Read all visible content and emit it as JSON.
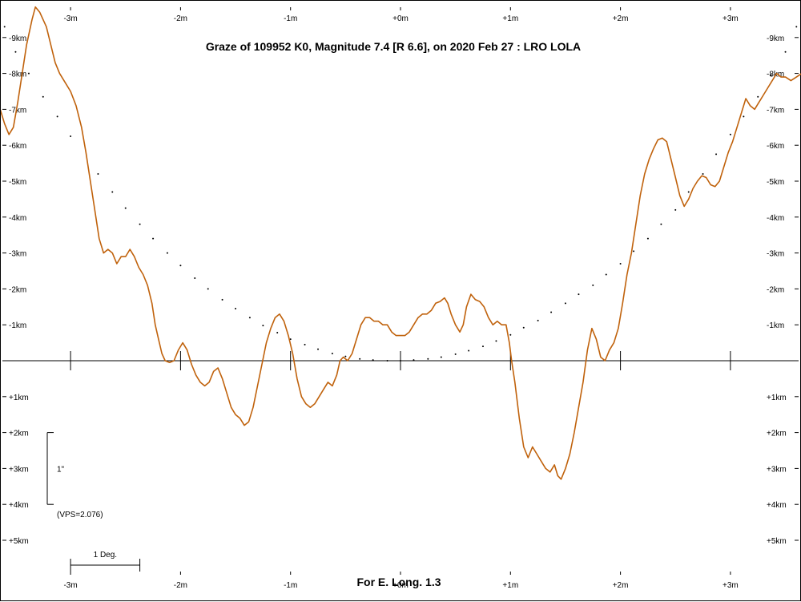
{
  "chart_data": {
    "type": "line",
    "title": "Graze of  109952 K0,  Magnitude 7.4 [R 6.6],  on 2020 Feb 27  :  LRO LOLA",
    "footer": "For E. Long. 1.3",
    "x_ticks": [
      "-3m",
      "-2m",
      "-1m",
      "+0m",
      "+1m",
      "+2m",
      "+3m"
    ],
    "y_ticks": [
      "-9km",
      "-8km",
      "-7km",
      "-6km",
      "-5km",
      "-4km",
      "-3km",
      "-2km",
      "-1km",
      "+1km",
      "+2km",
      "+3km",
      "+4km",
      "+5km"
    ],
    "xlim": [
      -3.65,
      3.65
    ],
    "ylim": [
      -10,
      6.5
    ],
    "scale_marker": {
      "label": "1\"",
      "y_from": 2,
      "y_to": 4
    },
    "vps_label": "(VPS=2.076)",
    "degree_scale": {
      "label": "1 Deg.",
      "x_from": -3,
      "x_to": -2.37
    },
    "colors": {
      "profile": "#c0620c",
      "dots": "#000000",
      "axis": "#000000"
    },
    "series": [
      {
        "style": "profile",
        "points": [
          [
            -3.65,
            -7.1
          ],
          [
            -3.6,
            -6.6
          ],
          [
            -3.56,
            -6.3
          ],
          [
            -3.52,
            -6.5
          ],
          [
            -3.48,
            -7.2
          ],
          [
            -3.44,
            -8.0
          ],
          [
            -3.4,
            -8.8
          ],
          [
            -3.35,
            -9.5
          ],
          [
            -3.32,
            -9.85
          ],
          [
            -3.28,
            -9.7
          ],
          [
            -3.22,
            -9.3
          ],
          [
            -3.18,
            -8.8
          ],
          [
            -3.14,
            -8.3
          ],
          [
            -3.1,
            -8.0
          ],
          [
            -3.06,
            -7.8
          ],
          [
            -3.0,
            -7.5
          ],
          [
            -2.95,
            -7.1
          ],
          [
            -2.9,
            -6.5
          ],
          [
            -2.86,
            -5.8
          ],
          [
            -2.82,
            -5.0
          ],
          [
            -2.78,
            -4.2
          ],
          [
            -2.74,
            -3.4
          ],
          [
            -2.7,
            -3.0
          ],
          [
            -2.66,
            -3.1
          ],
          [
            -2.62,
            -3.0
          ],
          [
            -2.58,
            -2.7
          ],
          [
            -2.54,
            -2.9
          ],
          [
            -2.5,
            -2.9
          ],
          [
            -2.46,
            -3.1
          ],
          [
            -2.42,
            -2.9
          ],
          [
            -2.38,
            -2.6
          ],
          [
            -2.34,
            -2.4
          ],
          [
            -2.3,
            -2.1
          ],
          [
            -2.26,
            -1.6
          ],
          [
            -2.23,
            -1.0
          ],
          [
            -2.2,
            -0.6
          ],
          [
            -2.17,
            -0.2
          ],
          [
            -2.14,
            0.0
          ],
          [
            -2.1,
            0.05
          ],
          [
            -2.06,
            0.0
          ],
          [
            -2.02,
            -0.3
          ],
          [
            -1.98,
            -0.5
          ],
          [
            -1.94,
            -0.3
          ],
          [
            -1.9,
            0.1
          ],
          [
            -1.86,
            0.4
          ],
          [
            -1.82,
            0.6
          ],
          [
            -1.78,
            0.7
          ],
          [
            -1.74,
            0.6
          ],
          [
            -1.7,
            0.3
          ],
          [
            -1.66,
            0.2
          ],
          [
            -1.62,
            0.5
          ],
          [
            -1.58,
            0.9
          ],
          [
            -1.54,
            1.3
          ],
          [
            -1.5,
            1.5
          ],
          [
            -1.46,
            1.6
          ],
          [
            -1.42,
            1.8
          ],
          [
            -1.38,
            1.7
          ],
          [
            -1.34,
            1.3
          ],
          [
            -1.3,
            0.7
          ],
          [
            -1.26,
            0.1
          ],
          [
            -1.22,
            -0.5
          ],
          [
            -1.18,
            -0.9
          ],
          [
            -1.14,
            -1.2
          ],
          [
            -1.1,
            -1.3
          ],
          [
            -1.06,
            -1.1
          ],
          [
            -1.02,
            -0.7
          ],
          [
            -0.98,
            -0.2
          ],
          [
            -0.94,
            0.5
          ],
          [
            -0.9,
            1.0
          ],
          [
            -0.86,
            1.2
          ],
          [
            -0.82,
            1.3
          ],
          [
            -0.78,
            1.2
          ],
          [
            -0.74,
            1.0
          ],
          [
            -0.7,
            0.8
          ],
          [
            -0.66,
            0.6
          ],
          [
            -0.62,
            0.7
          ],
          [
            -0.58,
            0.4
          ],
          [
            -0.55,
            0.0
          ],
          [
            -0.52,
            -0.1
          ],
          [
            -0.48,
            0.0
          ],
          [
            -0.44,
            -0.2
          ],
          [
            -0.4,
            -0.6
          ],
          [
            -0.36,
            -1.0
          ],
          [
            -0.32,
            -1.2
          ],
          [
            -0.28,
            -1.2
          ],
          [
            -0.24,
            -1.1
          ],
          [
            -0.2,
            -1.1
          ],
          [
            -0.16,
            -1.0
          ],
          [
            -0.12,
            -1.0
          ],
          [
            -0.08,
            -0.8
          ],
          [
            -0.04,
            -0.7
          ],
          [
            0.0,
            -0.7
          ],
          [
            0.04,
            -0.7
          ],
          [
            0.08,
            -0.8
          ],
          [
            0.12,
            -1.0
          ],
          [
            0.16,
            -1.2
          ],
          [
            0.2,
            -1.3
          ],
          [
            0.24,
            -1.3
          ],
          [
            0.28,
            -1.4
          ],
          [
            0.32,
            -1.6
          ],
          [
            0.36,
            -1.65
          ],
          [
            0.4,
            -1.75
          ],
          [
            0.43,
            -1.6
          ],
          [
            0.46,
            -1.3
          ],
          [
            0.5,
            -1.0
          ],
          [
            0.54,
            -0.8
          ],
          [
            0.57,
            -1.0
          ],
          [
            0.6,
            -1.5
          ],
          [
            0.64,
            -1.85
          ],
          [
            0.68,
            -1.7
          ],
          [
            0.72,
            -1.65
          ],
          [
            0.76,
            -1.5
          ],
          [
            0.8,
            -1.2
          ],
          [
            0.84,
            -1.0
          ],
          [
            0.88,
            -1.1
          ],
          [
            0.92,
            -1.0
          ],
          [
            0.96,
            -1.0
          ],
          [
            0.99,
            -0.5
          ],
          [
            1.01,
            0.0
          ],
          [
            1.04,
            0.6
          ],
          [
            1.08,
            1.6
          ],
          [
            1.12,
            2.4
          ],
          [
            1.16,
            2.7
          ],
          [
            1.2,
            2.4
          ],
          [
            1.24,
            2.6
          ],
          [
            1.28,
            2.8
          ],
          [
            1.32,
            3.0
          ],
          [
            1.36,
            3.1
          ],
          [
            1.4,
            2.9
          ],
          [
            1.43,
            3.2
          ],
          [
            1.46,
            3.3
          ],
          [
            1.5,
            3.0
          ],
          [
            1.54,
            2.6
          ],
          [
            1.58,
            2.0
          ],
          [
            1.62,
            1.3
          ],
          [
            1.66,
            0.6
          ],
          [
            1.7,
            -0.3
          ],
          [
            1.74,
            -0.9
          ],
          [
            1.78,
            -0.6
          ],
          [
            1.82,
            -0.1
          ],
          [
            1.86,
            0.0
          ],
          [
            1.9,
            -0.3
          ],
          [
            1.94,
            -0.5
          ],
          [
            1.98,
            -0.9
          ],
          [
            2.02,
            -1.6
          ],
          [
            2.06,
            -2.4
          ],
          [
            2.1,
            -3.0
          ],
          [
            2.14,
            -3.8
          ],
          [
            2.18,
            -4.6
          ],
          [
            2.22,
            -5.2
          ],
          [
            2.26,
            -5.6
          ],
          [
            2.3,
            -5.9
          ],
          [
            2.34,
            -6.15
          ],
          [
            2.38,
            -6.2
          ],
          [
            2.42,
            -6.1
          ],
          [
            2.46,
            -5.6
          ],
          [
            2.5,
            -5.1
          ],
          [
            2.54,
            -4.6
          ],
          [
            2.58,
            -4.3
          ],
          [
            2.62,
            -4.5
          ],
          [
            2.66,
            -4.8
          ],
          [
            2.7,
            -5.0
          ],
          [
            2.74,
            -5.15
          ],
          [
            2.78,
            -5.1
          ],
          [
            2.82,
            -4.9
          ],
          [
            2.86,
            -4.85
          ],
          [
            2.9,
            -5.0
          ],
          [
            2.94,
            -5.4
          ],
          [
            2.98,
            -5.8
          ],
          [
            3.02,
            -6.1
          ],
          [
            3.06,
            -6.5
          ],
          [
            3.1,
            -6.9
          ],
          [
            3.14,
            -7.3
          ],
          [
            3.18,
            -7.1
          ],
          [
            3.22,
            -7.0
          ],
          [
            3.26,
            -7.2
          ],
          [
            3.3,
            -7.4
          ],
          [
            3.34,
            -7.6
          ],
          [
            3.38,
            -7.8
          ],
          [
            3.42,
            -8.0
          ],
          [
            3.46,
            -7.9
          ],
          [
            3.5,
            -7.9
          ],
          [
            3.55,
            -7.8
          ],
          [
            3.6,
            -7.9
          ],
          [
            3.65,
            -8.0
          ]
        ]
      },
      {
        "style": "dots",
        "points": [
          [
            -3.6,
            -9.3
          ],
          [
            -3.5,
            -8.6
          ],
          [
            -3.38,
            -8.0
          ],
          [
            -3.25,
            -7.35
          ],
          [
            -3.12,
            -6.8
          ],
          [
            -3.0,
            -6.25
          ],
          [
            -2.75,
            -5.2
          ],
          [
            -2.62,
            -4.7
          ],
          [
            -2.5,
            -4.25
          ],
          [
            -2.37,
            -3.8
          ],
          [
            -2.25,
            -3.4
          ],
          [
            -2.12,
            -3.0
          ],
          [
            -2.0,
            -2.65
          ],
          [
            -1.87,
            -2.3
          ],
          [
            -1.75,
            -2.0
          ],
          [
            -1.62,
            -1.7
          ],
          [
            -1.5,
            -1.45
          ],
          [
            -1.37,
            -1.2
          ],
          [
            -1.25,
            -0.98
          ],
          [
            -1.12,
            -0.78
          ],
          [
            -1.0,
            -0.6
          ],
          [
            -0.87,
            -0.45
          ],
          [
            -0.75,
            -0.32
          ],
          [
            -0.62,
            -0.2
          ],
          [
            -0.5,
            -0.12
          ],
          [
            -0.37,
            -0.05
          ],
          [
            -0.25,
            -0.02
          ],
          [
            -0.12,
            0.0
          ],
          [
            0.0,
            0.0
          ],
          [
            0.12,
            -0.02
          ],
          [
            0.25,
            -0.05
          ],
          [
            0.37,
            -0.1
          ],
          [
            0.5,
            -0.18
          ],
          [
            0.62,
            -0.28
          ],
          [
            0.75,
            -0.4
          ],
          [
            0.87,
            -0.55
          ],
          [
            1.0,
            -0.72
          ],
          [
            1.12,
            -0.92
          ],
          [
            1.25,
            -1.12
          ],
          [
            1.37,
            -1.35
          ],
          [
            1.5,
            -1.6
          ],
          [
            1.62,
            -1.85
          ],
          [
            1.75,
            -2.1
          ],
          [
            1.87,
            -2.4
          ],
          [
            2.0,
            -2.7
          ],
          [
            2.12,
            -3.05
          ],
          [
            2.25,
            -3.4
          ],
          [
            2.37,
            -3.8
          ],
          [
            2.5,
            -4.2
          ],
          [
            2.62,
            -4.7
          ],
          [
            2.75,
            -5.2
          ],
          [
            2.87,
            -5.75
          ],
          [
            3.0,
            -6.3
          ],
          [
            3.12,
            -6.8
          ],
          [
            3.25,
            -7.35
          ],
          [
            3.37,
            -7.95
          ],
          [
            3.5,
            -8.6
          ],
          [
            3.6,
            -9.3
          ]
        ]
      }
    ]
  }
}
